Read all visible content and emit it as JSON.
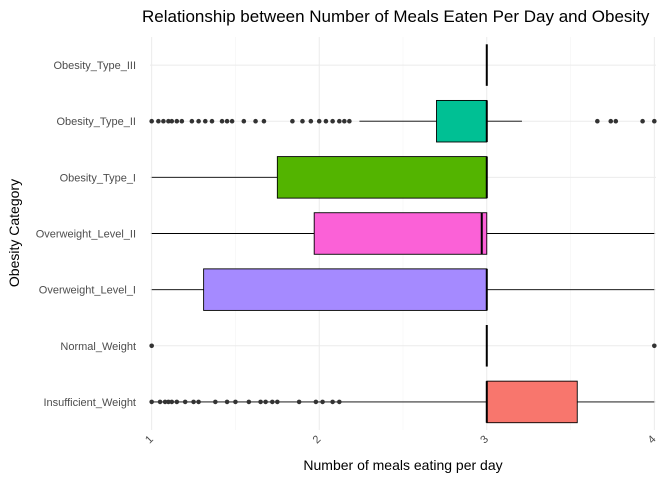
{
  "chart_data": {
    "type": "boxplot",
    "title": "Relationship between Number of Meals Eaten Per Day and Obesity",
    "xlabel": "Number of meals eating per day",
    "ylabel": "Obesity Category",
    "xlim": [
      0.99,
      4.01
    ],
    "x_ticks": [
      1,
      2,
      3,
      4
    ],
    "x_tick_labels": [
      "1",
      "2",
      "3",
      "4"
    ],
    "grid": true,
    "legend": "none",
    "categories": [
      {
        "name": "Insufficient_Weight",
        "color": "#F8766D",
        "whisker_low": 1.0,
        "q1": 3.0,
        "median": 3.0,
        "q3": 3.54,
        "whisker_high": 4.0,
        "outliers": [
          1.0,
          1.05,
          1.08,
          1.1,
          1.12,
          1.15,
          1.2,
          1.25,
          1.28,
          1.38,
          1.45,
          1.5,
          1.58,
          1.65,
          1.68,
          1.72,
          1.75,
          1.88,
          1.98,
          2.02,
          2.08,
          2.12
        ]
      },
      {
        "name": "Normal_Weight",
        "color": "#C49A00",
        "whisker_low": 3.0,
        "q1": 3.0,
        "median": 3.0,
        "q3": 3.0,
        "whisker_high": 3.0,
        "outliers": [
          1.0,
          4.0
        ]
      },
      {
        "name": "Overweight_Level_I",
        "color": "#A58AFF",
        "whisker_low": 1.0,
        "q1": 1.31,
        "median": 3.0,
        "q3": 3.0,
        "whisker_high": 4.0,
        "outliers": []
      },
      {
        "name": "Overweight_Level_II",
        "color": "#FB61D7",
        "whisker_low": 1.0,
        "q1": 1.97,
        "median": 2.97,
        "q3": 3.0,
        "whisker_high": 4.0,
        "outliers": []
      },
      {
        "name": "Obesity_Type_I",
        "color": "#53B400",
        "whisker_low": 1.0,
        "q1": 1.75,
        "median": 3.0,
        "q3": 3.0,
        "whisker_high": 3.0,
        "outliers": []
      },
      {
        "name": "Obesity_Type_II",
        "color": "#00C094",
        "whisker_low": 2.24,
        "q1": 2.7,
        "median": 3.0,
        "q3": 3.0,
        "whisker_high": 3.21,
        "outliers": [
          1.0,
          1.04,
          1.07,
          1.1,
          1.12,
          1.15,
          1.18,
          1.24,
          1.28,
          1.32,
          1.36,
          1.42,
          1.45,
          1.48,
          1.55,
          1.62,
          1.67,
          1.84,
          1.9,
          1.95,
          2.0,
          2.04,
          2.08,
          2.12,
          2.15,
          2.18,
          3.66,
          3.74,
          3.77,
          3.93,
          4.0
        ]
      },
      {
        "name": "Obesity_Type_III",
        "color": "#00B6EB",
        "whisker_low": 3.0,
        "q1": 3.0,
        "median": 3.0,
        "q3": 3.0,
        "whisker_high": 3.0,
        "outliers": []
      }
    ]
  }
}
